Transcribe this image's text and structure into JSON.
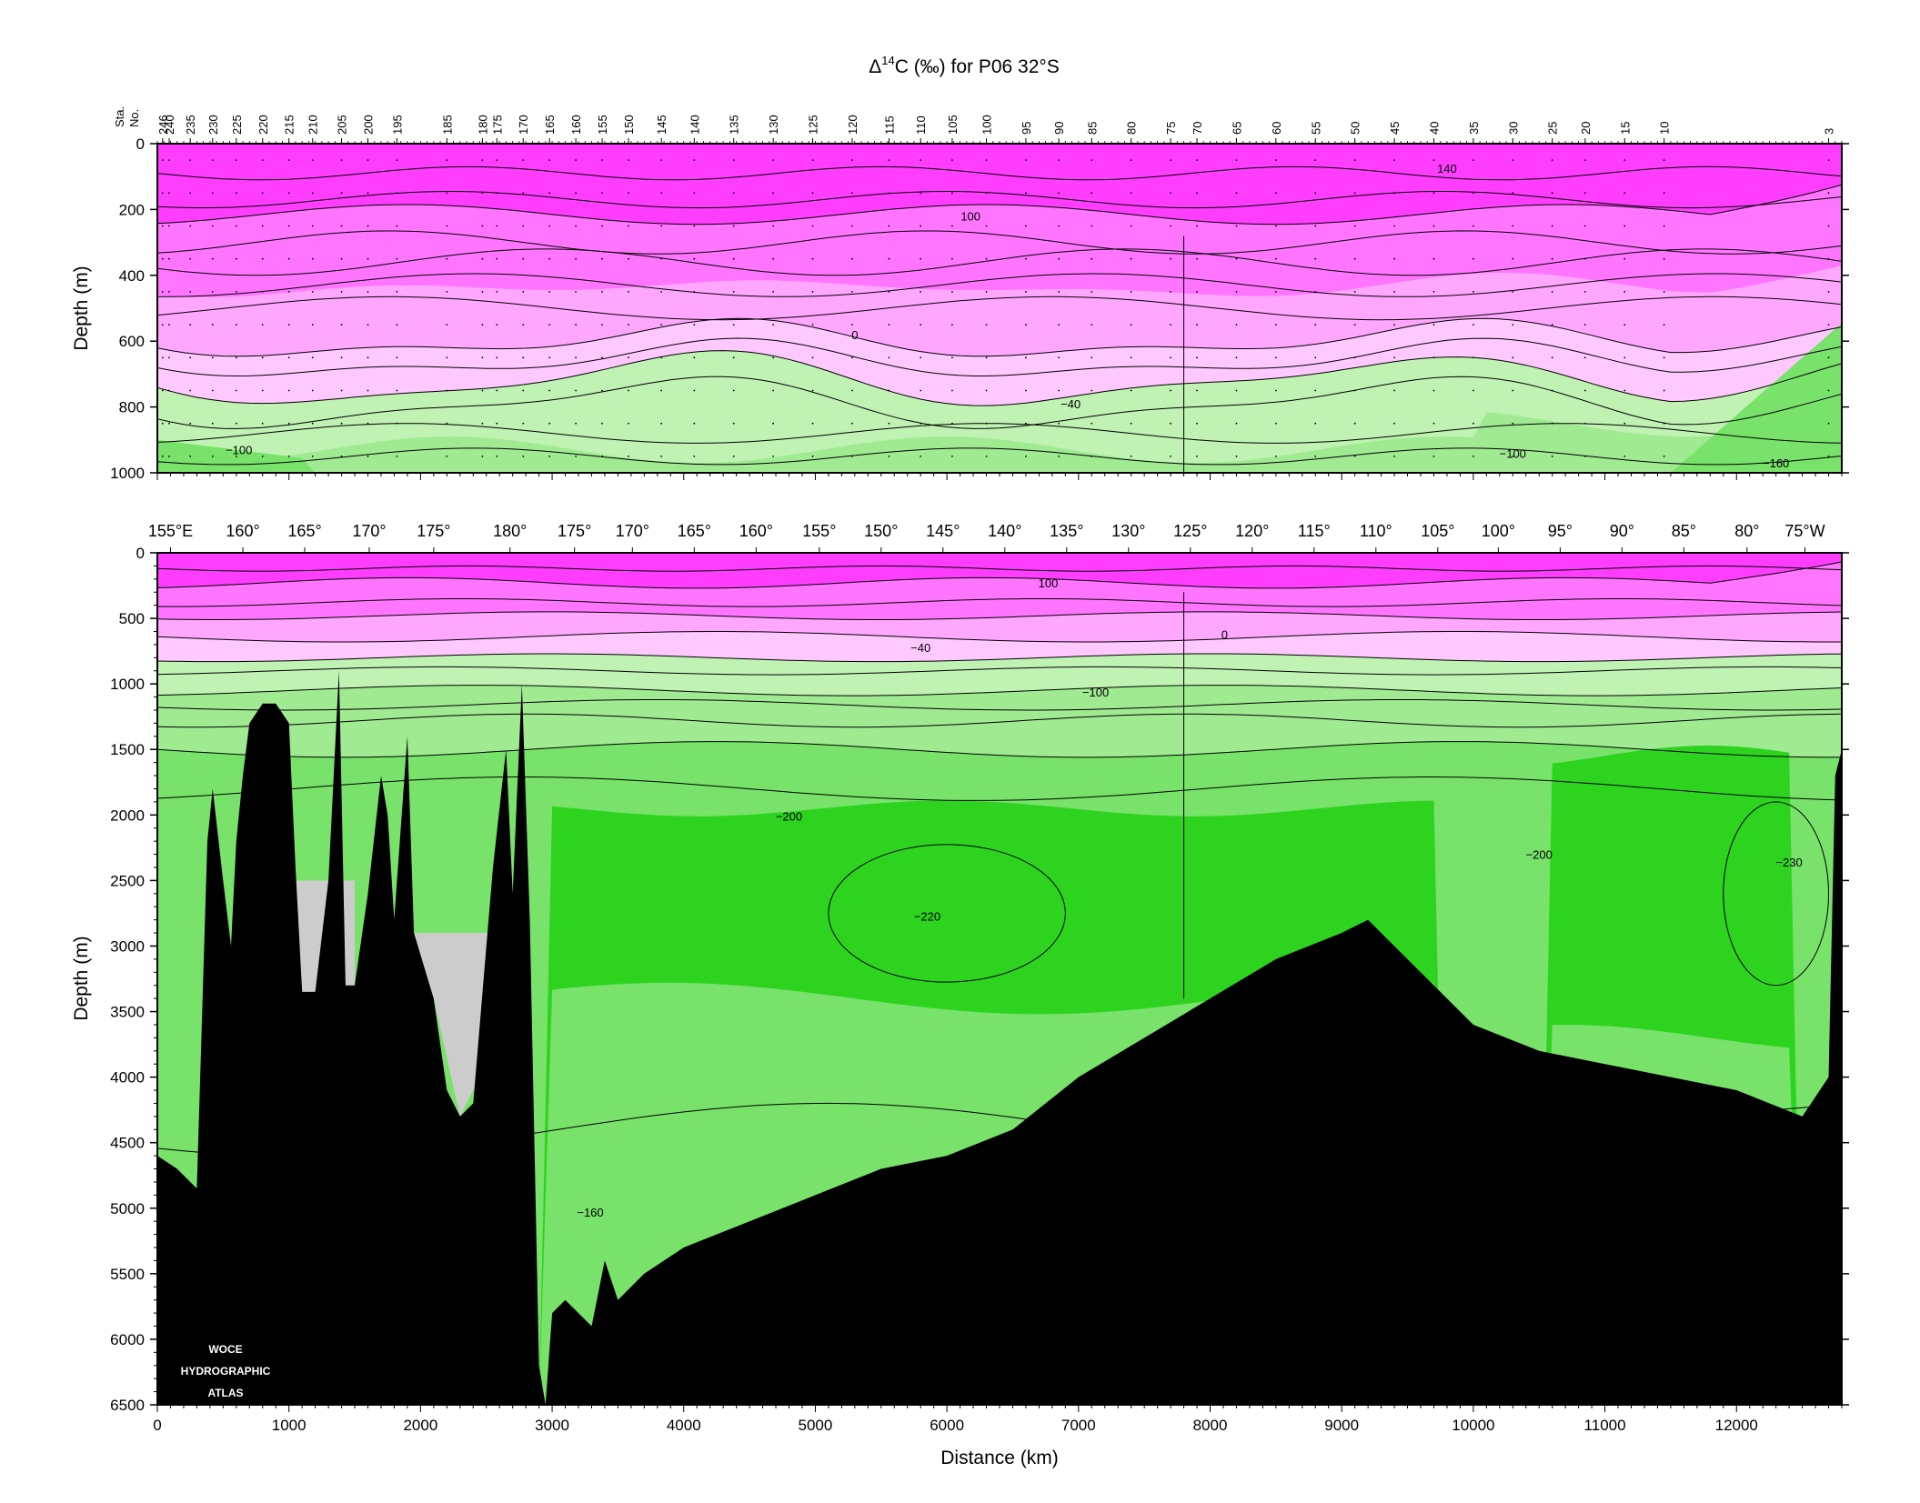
{
  "chart_data": [
    {
      "type": "heatmap",
      "title_prefix": "Δ",
      "title_superscript": "14",
      "title_main": "C (‰) for P06 32°S",
      "panel": "upper",
      "ylabel": "Depth (m)",
      "ylim": [
        1000,
        0
      ],
      "xlim": [
        0,
        12800
      ],
      "yticks": [
        0,
        200,
        400,
        600,
        800,
        1000
      ],
      "station_axis_title": [
        "Sta.",
        "No."
      ],
      "stations": [
        "246",
        "240",
        "235",
        "230",
        "225",
        "220",
        "215",
        "210",
        "205",
        "200",
        "195",
        "185",
        "180",
        "175",
        "170",
        "165",
        "160",
        "155",
        "150",
        "145",
        "140",
        "135",
        "130",
        "125",
        "120",
        "115",
        "110",
        "105",
        "100",
        "95",
        "90",
        "85",
        "80",
        "75",
        "70",
        "65",
        "60",
        "55",
        "50",
        "45",
        "40",
        "35",
        "30",
        "25",
        "20",
        "15",
        "10",
        "3"
      ],
      "station_km": [
        40,
        90,
        250,
        420,
        600,
        800,
        1000,
        1180,
        1400,
        1600,
        1820,
        2200,
        2470,
        2580,
        2780,
        2980,
        3180,
        3380,
        3580,
        3830,
        4080,
        4380,
        4680,
        4980,
        5280,
        5560,
        5800,
        6040,
        6300,
        6600,
        6850,
        7100,
        7400,
        7700,
        7900,
        8200,
        8500,
        8800,
        9100,
        9400,
        9700,
        10000,
        10300,
        10600,
        10850,
        11150,
        11450,
        12700
      ],
      "contour_labels": [
        {
          "text": "140",
          "x": 9800,
          "y": 75
        },
        {
          "text": "100",
          "x": 6180,
          "y": 220
        },
        {
          "text": "0",
          "x": 5300,
          "y": 580
        },
        {
          "text": "−40",
          "x": 6940,
          "y": 790
        },
        {
          "text": "−100",
          "x": 620,
          "y": 930
        },
        {
          "text": "−100",
          "x": 10300,
          "y": 940
        },
        {
          "text": "−160",
          "x": 12300,
          "y": 970
        }
      ]
    },
    {
      "type": "heatmap",
      "panel": "lower",
      "ylabel": "Depth (m)",
      "xlabel": "Distance (km)",
      "ylim": [
        6500,
        0
      ],
      "xlim": [
        0,
        12800
      ],
      "yticks": [
        0,
        500,
        1000,
        1500,
        2000,
        2500,
        3000,
        3500,
        4000,
        4500,
        5000,
        5500,
        6000,
        6500
      ],
      "xticks": [
        0,
        1000,
        2000,
        3000,
        4000,
        5000,
        6000,
        7000,
        8000,
        9000,
        10000,
        11000,
        12000
      ],
      "longitude_labels": [
        {
          "text": "155°E",
          "x": 100
        },
        {
          "text": "160°",
          "x": 650
        },
        {
          "text": "165°",
          "x": 1120
        },
        {
          "text": "170°",
          "x": 1610
        },
        {
          "text": "175°",
          "x": 2100
        },
        {
          "text": "180°",
          "x": 2680
        },
        {
          "text": "175°",
          "x": 3170
        },
        {
          "text": "170°",
          "x": 3610
        },
        {
          "text": "165°",
          "x": 4080
        },
        {
          "text": "160°",
          "x": 4550
        },
        {
          "text": "155°",
          "x": 5030
        },
        {
          "text": "150°",
          "x": 5500
        },
        {
          "text": "145°",
          "x": 5970
        },
        {
          "text": "140°",
          "x": 6440
        },
        {
          "text": "135°",
          "x": 6910
        },
        {
          "text": "130°",
          "x": 7380
        },
        {
          "text": "125°",
          "x": 7850
        },
        {
          "text": "120°",
          "x": 8320
        },
        {
          "text": "115°",
          "x": 8790
        },
        {
          "text": "110°",
          "x": 9260
        },
        {
          "text": "105°",
          "x": 9730
        },
        {
          "text": "100°",
          "x": 10190
        },
        {
          "text": "95°",
          "x": 10660
        },
        {
          "text": "90°",
          "x": 11130
        },
        {
          "text": "85°",
          "x": 11600
        },
        {
          "text": "80°",
          "x": 12080
        },
        {
          "text": "75°W",
          "x": 12520
        }
      ],
      "contour_labels": [
        {
          "text": "100",
          "x": 6770,
          "y": 230
        },
        {
          "text": "0",
          "x": 8110,
          "y": 620
        },
        {
          "text": "−40",
          "x": 5800,
          "y": 720
        },
        {
          "text": "−100",
          "x": 7130,
          "y": 1060
        },
        {
          "text": "−200",
          "x": 4800,
          "y": 2010
        },
        {
          "text": "−220",
          "x": 5850,
          "y": 2770
        },
        {
          "text": "−200",
          "x": 10500,
          "y": 2300
        },
        {
          "text": "−230",
          "x": 12400,
          "y": 2360
        },
        {
          "text": "−160",
          "x": 3290,
          "y": 5030
        }
      ]
    }
  ],
  "logo": {
    "line1": "WOCE",
    "line2": "HYDROGRAPHIC",
    "line3": "ATLAS"
  },
  "colors": {
    "magenta_1": "#ff3dff",
    "magenta_2": "#ff75ff",
    "magenta_3": "#ffa6ff",
    "magenta_4": "#ffc9ff",
    "green_1": "#bff2b3",
    "green_2": "#a0ea92",
    "green_3": "#78e26a",
    "green_4": "#2ed320",
    "bottom": "#000000",
    "masked": "#cccccc"
  }
}
